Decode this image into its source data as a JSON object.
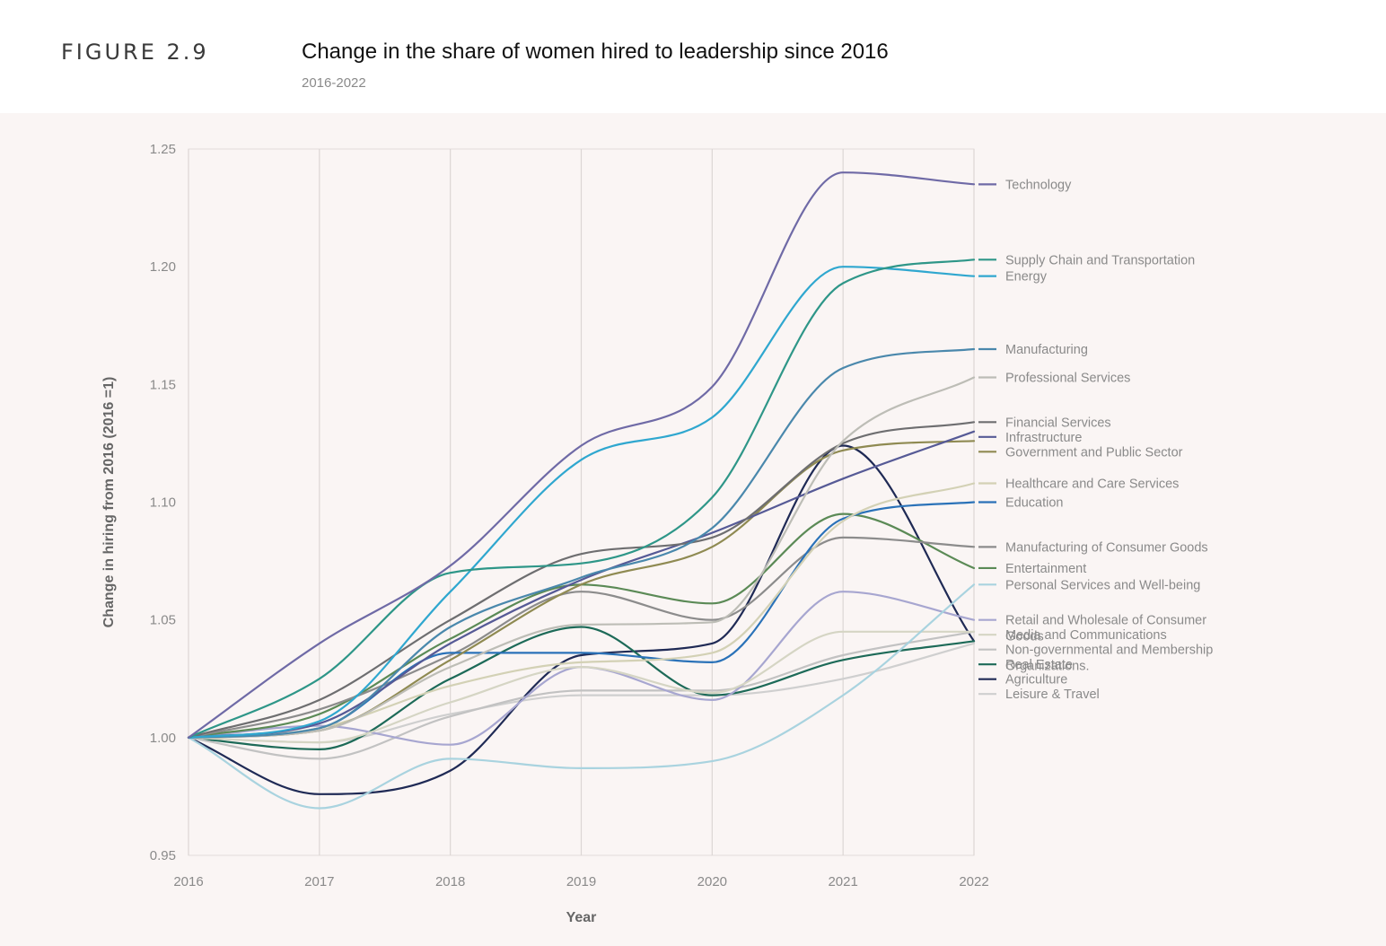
{
  "figure_label": "FIGURE 2.9",
  "title": "Change in the share of women hired to leadership since 2016",
  "subtitle": "2016-2022",
  "chart_data": {
    "type": "line",
    "x": [
      2016,
      2017,
      2018,
      2019,
      2020,
      2021,
      2022
    ],
    "xlabel": "Year",
    "ylabel": "Change in hiring from 2016 (2016 =1)",
    "ylim": [
      0.95,
      1.25
    ],
    "xlim": [
      2016,
      2022
    ],
    "yticks": [
      "0.95",
      "1.00",
      "1.05",
      "1.10",
      "1.15",
      "1.20",
      "1.25"
    ],
    "xticks": [
      "2016",
      "2017",
      "2018",
      "2019",
      "2020",
      "2021",
      "2022"
    ],
    "grid": "vertical",
    "legend": "right, end-of-line labels",
    "series": [
      {
        "name": "Technology",
        "color": "#6f6aa6",
        "values": [
          1.0,
          1.04,
          1.073,
          1.124,
          1.149,
          1.24,
          1.235
        ]
      },
      {
        "name": "Supply Chain and Transportation",
        "color": "#2e9688",
        "values": [
          1.0,
          1.025,
          1.07,
          1.074,
          1.102,
          1.193,
          1.203
        ]
      },
      {
        "name": "Energy",
        "color": "#2fa7cf",
        "values": [
          1.0,
          1.007,
          1.062,
          1.118,
          1.136,
          1.2,
          1.196
        ]
      },
      {
        "name": "Manufacturing",
        "color": "#4a88ac",
        "values": [
          1.0,
          1.004,
          1.047,
          1.068,
          1.089,
          1.157,
          1.165
        ]
      },
      {
        "name": "Professional Services",
        "color": "#bdbdb6",
        "values": [
          1.0,
          1.003,
          1.03,
          1.048,
          1.049,
          1.126,
          1.153
        ]
      },
      {
        "name": "Financial Services",
        "color": "#6e6e70",
        "values": [
          1.0,
          1.016,
          1.05,
          1.078,
          1.085,
          1.125,
          1.134
        ]
      },
      {
        "name": "Infrastructure",
        "color": "#565a96",
        "values": [
          1.0,
          1.006,
          1.04,
          1.067,
          1.087,
          1.11,
          1.13
        ]
      },
      {
        "name": "Government and Public Sector",
        "color": "#8f8a52",
        "values": [
          1.0,
          1.003,
          1.033,
          1.065,
          1.081,
          1.122,
          1.126
        ]
      },
      {
        "name": "Healthcare and Care Services",
        "color": "#d3d1b5",
        "values": [
          1.0,
          1.004,
          1.022,
          1.032,
          1.036,
          1.092,
          1.108
        ]
      },
      {
        "name": "Education",
        "color": "#2a72b8",
        "values": [
          1.0,
          1.004,
          1.036,
          1.036,
          1.032,
          1.093,
          1.1
        ]
      },
      {
        "name": "Manufacturing of Consumer Goods",
        "color": "#8c8c8c",
        "values": [
          1.0,
          1.012,
          1.035,
          1.062,
          1.05,
          1.085,
          1.081
        ]
      },
      {
        "name": "Entertainment",
        "color": "#5b8a56",
        "values": [
          1.0,
          1.01,
          1.042,
          1.065,
          1.057,
          1.095,
          1.072
        ]
      },
      {
        "name": "Personal Services and Well-being",
        "color": "#a9d3df",
        "values": [
          1.0,
          0.97,
          0.991,
          0.987,
          0.99,
          1.018,
          1.065
        ]
      },
      {
        "name": "Media and Communications",
        "color": "#d5d5c4",
        "values": [
          1.0,
          0.998,
          1.015,
          1.03,
          1.019,
          1.045,
          1.045
        ]
      },
      {
        "name": "Retail and Wholesale of Consumer Goods",
        "color": "#a7a6d0",
        "values": [
          1.0,
          1.005,
          0.997,
          1.03,
          1.016,
          1.062,
          1.05
        ]
      },
      {
        "name": "Non-governmental and Membership Organizations.",
        "color": "#c2c2c2",
        "values": [
          1.0,
          0.991,
          1.009,
          1.02,
          1.02,
          1.035,
          1.045
        ]
      },
      {
        "name": "Real Estate",
        "color": "#1d6a58",
        "values": [
          1.0,
          0.995,
          1.025,
          1.047,
          1.018,
          1.033,
          1.041
        ]
      },
      {
        "name": "Agriculture",
        "color": "#1f2a55",
        "values": [
          1.0,
          0.976,
          0.986,
          1.035,
          1.04,
          1.124,
          1.041
        ]
      },
      {
        "name": "Leisure & Travel",
        "color": "#cfcfcf",
        "values": [
          1.0,
          0.998,
          1.01,
          1.018,
          1.018,
          1.025,
          1.04
        ]
      }
    ]
  }
}
